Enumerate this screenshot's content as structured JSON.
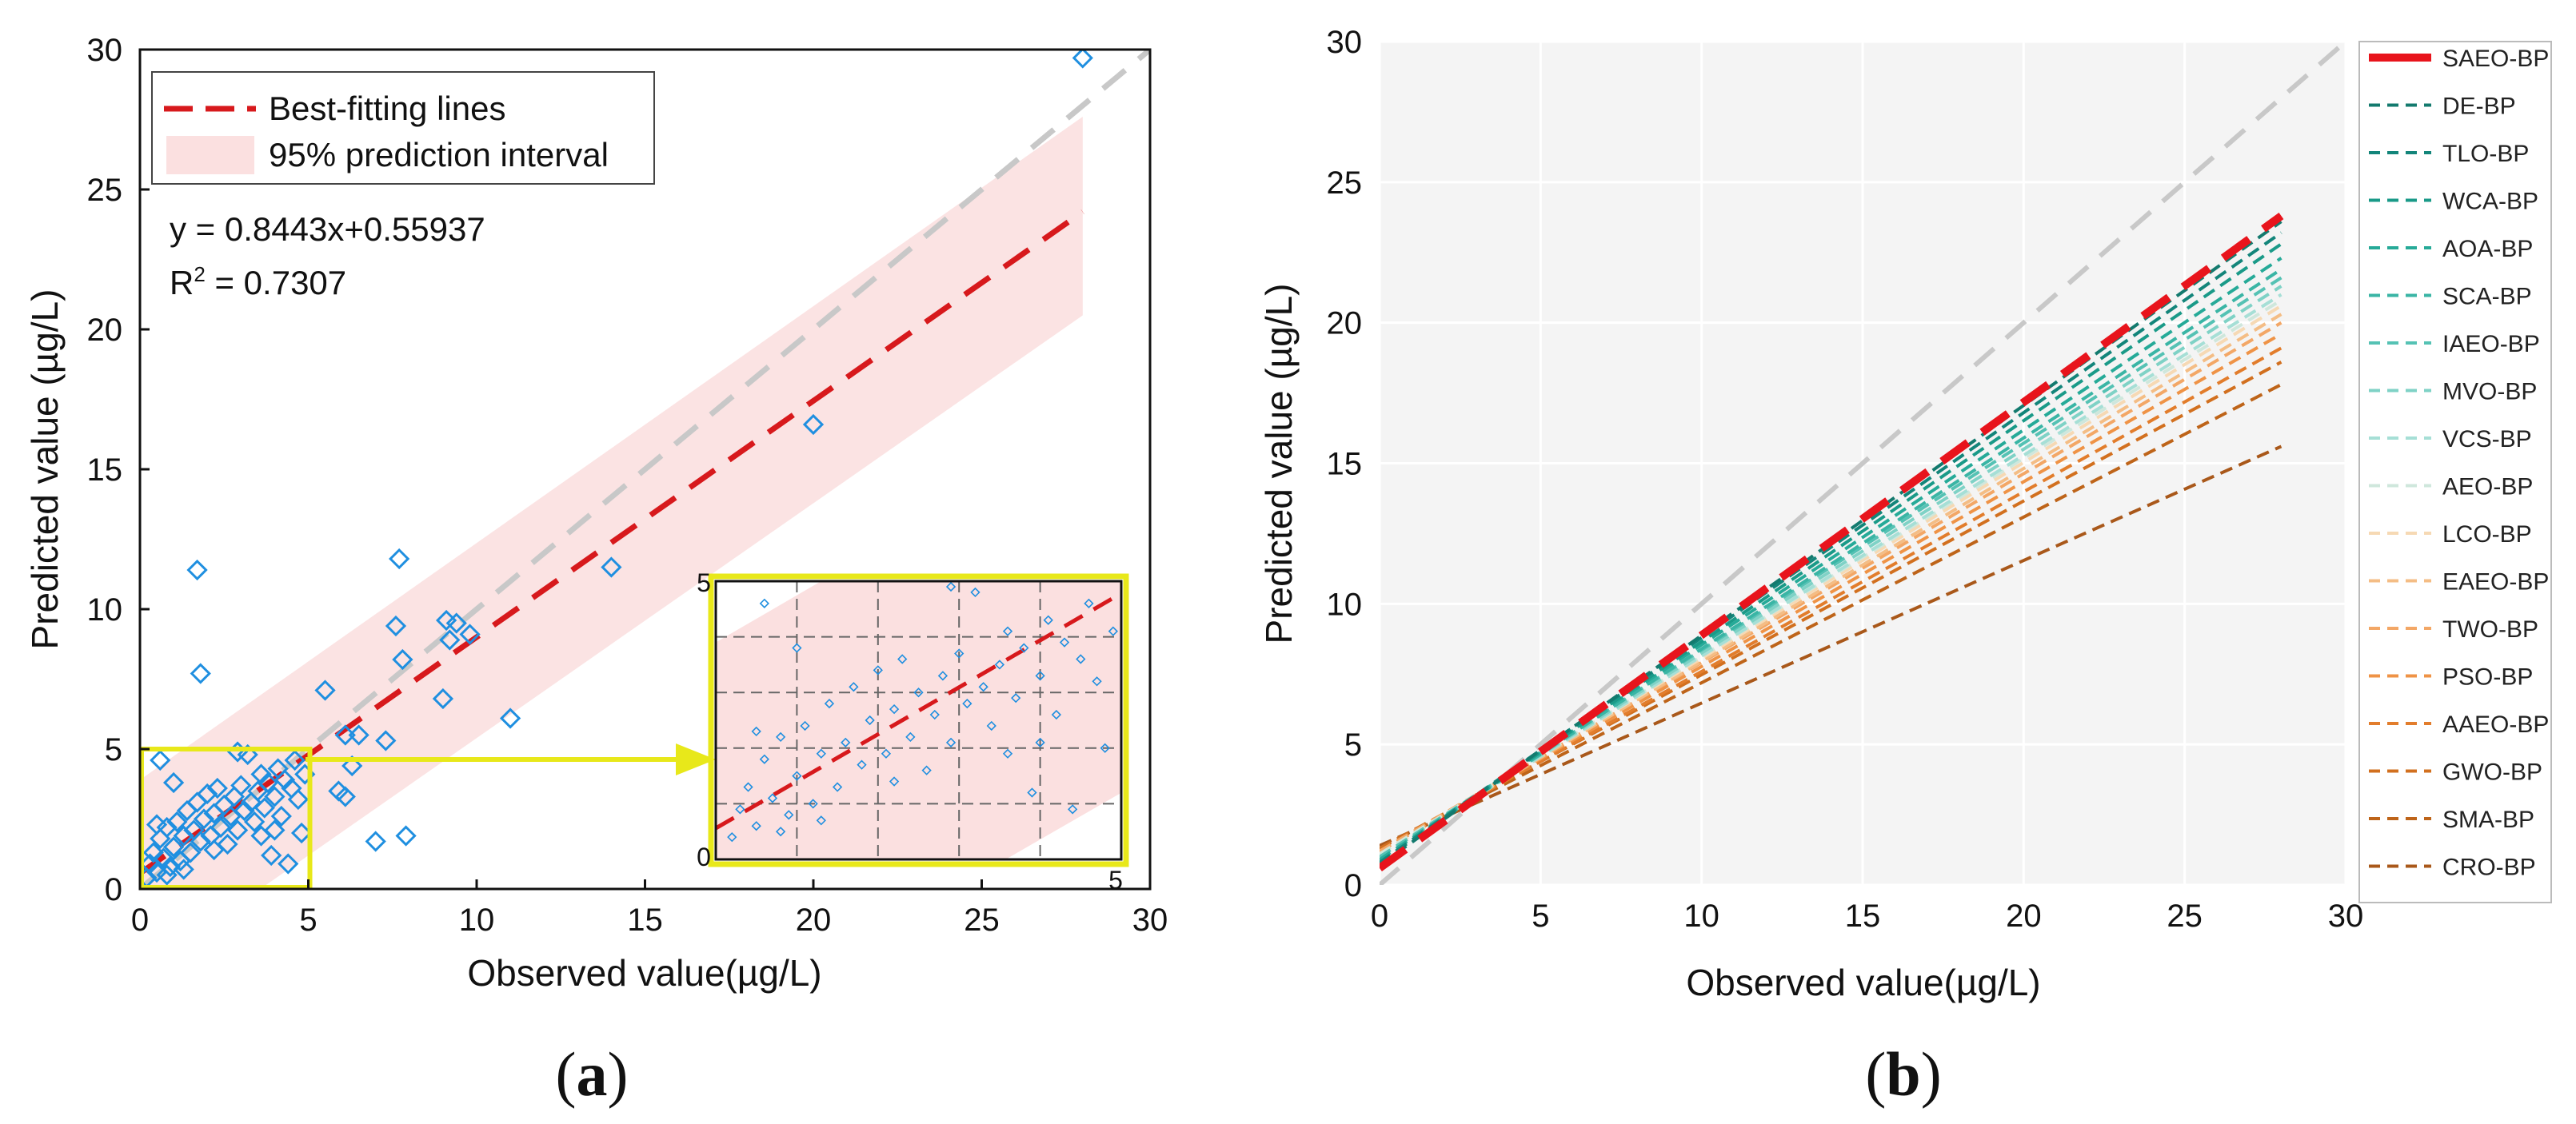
{
  "chart_data": [
    {
      "panel": "a",
      "type": "scatter",
      "caption": "(a)",
      "caption_letter": "a",
      "xlabel": "Observed value(µg/L)",
      "ylabel": "Predicted value (µg/L)",
      "xlim": [
        0,
        30
      ],
      "ylim": [
        0,
        30
      ],
      "xticks": [
        0,
        5,
        10,
        15,
        20,
        25,
        30
      ],
      "yticks": [
        0,
        5,
        10,
        15,
        20,
        25,
        30
      ],
      "legend": [
        {
          "label": "Best-fitting lines",
          "color": "#d7191c",
          "style": "dashed"
        },
        {
          "label": "95% prediction interval",
          "color": "#f9d9d9",
          "style": "band"
        }
      ],
      "equation": "y = 0.8443x+0.55937",
      "r2_prefix": "R",
      "r2_sup": "2",
      "r2_value": " = 0.7307",
      "fit": {
        "slope": 0.8443,
        "intercept": 0.55937,
        "x_range": [
          0,
          28
        ]
      },
      "prediction_band": {
        "lower_at_0": -3.0,
        "upper_at_0": 3.9,
        "lower_at_28": 20.5,
        "upper_at_28": 27.6
      },
      "identity_line": true,
      "marker_color": "#1f8fe0",
      "points": [
        [
          0.2,
          0.4
        ],
        [
          0.3,
          0.9
        ],
        [
          0.4,
          1.3
        ],
        [
          0.5,
          0.6
        ],
        [
          0.6,
          1.8
        ],
        [
          0.7,
          1.1
        ],
        [
          0.8,
          2.2
        ],
        [
          0.9,
          0.8
        ],
        [
          1.0,
          1.5
        ],
        [
          1.1,
          2.4
        ],
        [
          1.2,
          1.0
        ],
        [
          1.3,
          1.9
        ],
        [
          1.4,
          2.8
        ],
        [
          1.5,
          1.3
        ],
        [
          1.6,
          2.1
        ],
        [
          1.7,
          3.1
        ],
        [
          1.8,
          1.7
        ],
        [
          1.9,
          2.5
        ],
        [
          2.0,
          3.4
        ],
        [
          2.1,
          1.9
        ],
        [
          2.2,
          2.7
        ],
        [
          2.3,
          3.6
        ],
        [
          2.4,
          2.2
        ],
        [
          2.5,
          3.0
        ],
        [
          2.6,
          1.6
        ],
        [
          2.7,
          2.6
        ],
        [
          2.8,
          3.3
        ],
        [
          2.9,
          2.1
        ],
        [
          3.0,
          3.7
        ],
        [
          3.1,
          2.8
        ],
        [
          3.2,
          4.8
        ],
        [
          3.3,
          3.1
        ],
        [
          3.4,
          2.4
        ],
        [
          3.5,
          3.5
        ],
        [
          3.6,
          4.1
        ],
        [
          3.7,
          2.9
        ],
        [
          3.8,
          3.8
        ],
        [
          3.9,
          1.2
        ],
        [
          4.0,
          3.3
        ],
        [
          4.1,
          4.3
        ],
        [
          4.2,
          2.6
        ],
        [
          4.3,
          3.9
        ],
        [
          4.4,
          0.9
        ],
        [
          4.5,
          3.6
        ],
        [
          4.6,
          4.6
        ],
        [
          4.7,
          3.2
        ],
        [
          4.8,
          2.0
        ],
        [
          4.9,
          4.1
        ],
        [
          0.5,
          2.3
        ],
        [
          0.8,
          0.5
        ],
        [
          1.3,
          0.7
        ],
        [
          2.2,
          1.4
        ],
        [
          3.6,
          1.9
        ],
        [
          4.0,
          2.1
        ],
        [
          1.0,
          3.8
        ],
        [
          0.6,
          4.6
        ],
        [
          1.7,
          11.4
        ],
        [
          1.8,
          7.7
        ],
        [
          2.9,
          4.9
        ],
        [
          5.5,
          7.1
        ],
        [
          5.9,
          3.5
        ],
        [
          6.1,
          5.5
        ],
        [
          6.3,
          4.4
        ],
        [
          6.5,
          5.5
        ],
        [
          7.0,
          1.7
        ],
        [
          7.3,
          5.3
        ],
        [
          7.6,
          9.4
        ],
        [
          7.7,
          11.8
        ],
        [
          7.8,
          8.2
        ],
        [
          7.9,
          1.9
        ],
        [
          9.0,
          6.8
        ],
        [
          9.1,
          9.6
        ],
        [
          9.2,
          8.9
        ],
        [
          9.4,
          9.5
        ],
        [
          9.8,
          9.1
        ],
        [
          11.0,
          6.1
        ],
        [
          14.0,
          11.5
        ],
        [
          20.0,
          16.6
        ],
        [
          28.0,
          29.7
        ],
        [
          6.1,
          3.3
        ]
      ],
      "inset": {
        "xlim": [
          0,
          5
        ],
        "ylim": [
          0,
          5
        ],
        "tick_labels": {
          "x0": "0",
          "x5": "5",
          "y0": "0",
          "y5": "5"
        },
        "source_box": {
          "x": [
            0,
            5
          ],
          "y": [
            0,
            5
          ]
        },
        "highlight_color": "#e8e81a"
      }
    },
    {
      "panel": "b",
      "type": "line",
      "caption": "(b)",
      "caption_letter": "b",
      "xlabel": "Observed value(µg/L)",
      "ylabel": "Predicted value (µg/L)",
      "xlim": [
        0,
        30
      ],
      "ylim": [
        0,
        30
      ],
      "xticks": [
        0,
        5,
        10,
        15,
        20,
        25,
        30
      ],
      "yticks": [
        0,
        5,
        10,
        15,
        20,
        25,
        30
      ],
      "background": "#f4f4f4",
      "identity_line": true,
      "series": [
        {
          "name": "SAEO-BP",
          "color": "#e8141c",
          "intercept": 0.6,
          "end_y": 23.8,
          "bold": true
        },
        {
          "name": "DE-BP",
          "color": "#137a6e",
          "intercept": 0.7,
          "end_y": 23.6
        },
        {
          "name": "TLO-BP",
          "color": "#13857a",
          "intercept": 0.8,
          "end_y": 23.2
        },
        {
          "name": "WCA-BP",
          "color": "#1a9a88",
          "intercept": 0.8,
          "end_y": 22.8
        },
        {
          "name": "AOA-BP",
          "color": "#26aa98",
          "intercept": 0.9,
          "end_y": 22.3
        },
        {
          "name": "SCA-BP",
          "color": "#3ab5a5",
          "intercept": 0.9,
          "end_y": 21.9
        },
        {
          "name": "IAEO-BP",
          "color": "#55c2b4",
          "intercept": 1.0,
          "end_y": 21.6
        },
        {
          "name": "MVO-BP",
          "color": "#7fd2c6",
          "intercept": 1.0,
          "end_y": 21.3
        },
        {
          "name": "VCS-BP",
          "color": "#a6dfd6",
          "intercept": 1.0,
          "end_y": 21.0
        },
        {
          "name": "AEO-BP",
          "color": "#cfe7dc",
          "intercept": 1.1,
          "end_y": 20.8
        },
        {
          "name": "LCO-BP",
          "color": "#f6d9b4",
          "intercept": 1.1,
          "end_y": 20.6
        },
        {
          "name": "EAEO-BP",
          "color": "#f4bd85",
          "intercept": 1.1,
          "end_y": 20.3
        },
        {
          "name": "TWO-BP",
          "color": "#f3a766",
          "intercept": 1.2,
          "end_y": 20.0
        },
        {
          "name": "PSO-BP",
          "color": "#ef9346",
          "intercept": 1.2,
          "end_y": 19.6
        },
        {
          "name": "AAEO-BP",
          "color": "#e27d2c",
          "intercept": 1.2,
          "end_y": 19.1
        },
        {
          "name": "GWO-BP",
          "color": "#d2701f",
          "intercept": 1.3,
          "end_y": 18.6
        },
        {
          "name": "SMA-BP",
          "color": "#be6419",
          "intercept": 1.3,
          "end_y": 17.8
        },
        {
          "name": "CRO-BP",
          "color": "#a9581a",
          "intercept": 1.4,
          "end_y": 15.6
        }
      ],
      "x_end": 28
    }
  ]
}
